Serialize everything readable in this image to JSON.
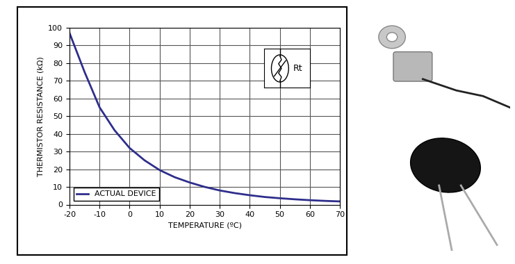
{
  "chart_data": {
    "type": "line",
    "x_label": "TEMPERATURE (ºC)",
    "y_label": "THERMISTOR RESISTANCE (kΩ)",
    "x": [
      -20,
      -15,
      -10,
      -5,
      0,
      5,
      10,
      15,
      20,
      25,
      30,
      35,
      40,
      45,
      50,
      55,
      60,
      65,
      70
    ],
    "series": [
      {
        "name": "ACTUAL DEVICE",
        "color": "#2e2e8c",
        "values": [
          97,
          75,
          55,
          42,
          32,
          25,
          19.5,
          15.5,
          12.5,
          10,
          8,
          6.5,
          5.3,
          4.3,
          3.6,
          3,
          2.5,
          2.1,
          1.8
        ]
      }
    ],
    "xlim": [
      -20,
      70
    ],
    "xticks": [
      -20,
      -10,
      0,
      10,
      20,
      30,
      40,
      50,
      60,
      70
    ],
    "ylim": [
      0,
      100
    ],
    "yticks": [
      0,
      10,
      20,
      30,
      40,
      50,
      60,
      70,
      80,
      90,
      100
    ],
    "grid": true,
    "legend": "lower left",
    "annotations": [
      "Rt"
    ]
  }
}
